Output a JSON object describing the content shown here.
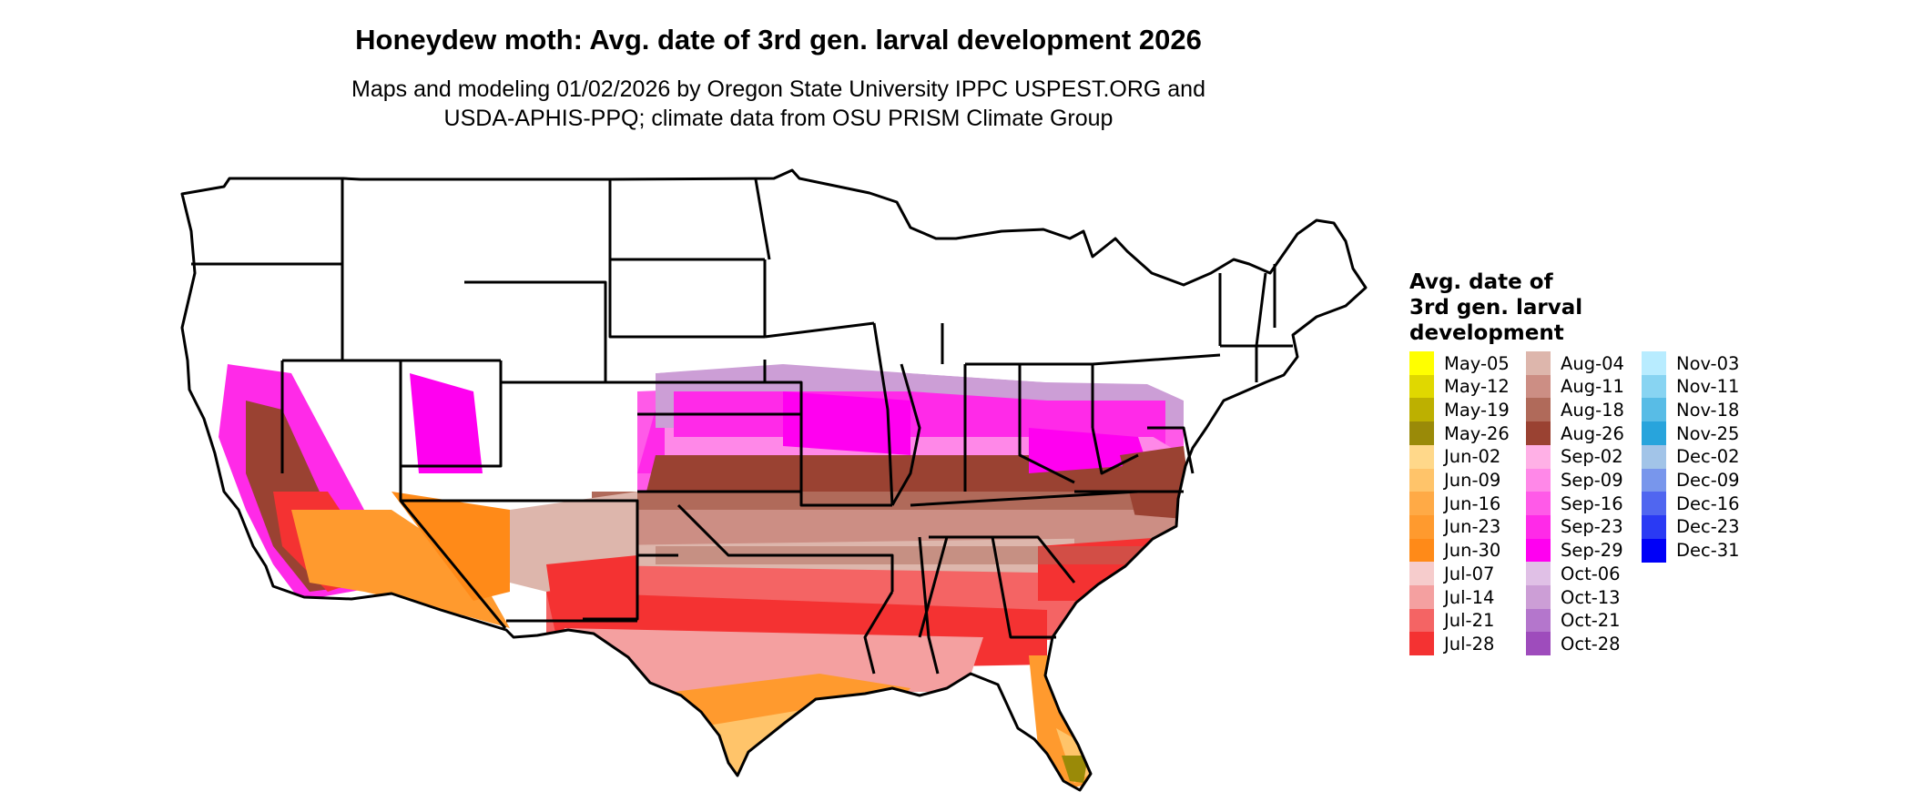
{
  "title": "Honeydew moth: Avg. date of 3rd gen. larval development 2026",
  "subtitle_line1": "Maps and modeling 01/02/2026 by Oregon State University IPPC USPEST.ORG and",
  "subtitle_line2": "USDA-APHIS-PPQ; climate data from OSU PRISM Climate Group",
  "legend": {
    "title_lines": [
      "Avg. date of",
      "3rd gen. larval",
      "development"
    ],
    "items": [
      {
        "label": "May-05",
        "color": "#ffff00"
      },
      {
        "label": "May-12",
        "color": "#e0d800"
      },
      {
        "label": "May-19",
        "color": "#bdb000"
      },
      {
        "label": "May-26",
        "color": "#9a8a08"
      },
      {
        "label": "Jun-02",
        "color": "#ffd88a"
      },
      {
        "label": "Jun-09",
        "color": "#ffc46a"
      },
      {
        "label": "Jun-16",
        "color": "#ffaa46"
      },
      {
        "label": "Jun-23",
        "color": "#ff9a2e"
      },
      {
        "label": "Jun-30",
        "color": "#ff8a18"
      },
      {
        "label": "Jul-07",
        "color": "#f6cccc"
      },
      {
        "label": "Jul-14",
        "color": "#f4a0a0"
      },
      {
        "label": "Jul-21",
        "color": "#f46464"
      },
      {
        "label": "Jul-28",
        "color": "#f43232"
      },
      {
        "label": "Aug-04",
        "color": "#ddb6ac"
      },
      {
        "label": "Aug-11",
        "color": "#cc8e84"
      },
      {
        "label": "Aug-18",
        "color": "#b06a5a"
      },
      {
        "label": "Aug-26",
        "color": "#9a4232"
      },
      {
        "label": "Sep-02",
        "color": "#ffb0e6"
      },
      {
        "label": "Sep-09",
        "color": "#ff88e8"
      },
      {
        "label": "Sep-16",
        "color": "#ff5ae8"
      },
      {
        "label": "Sep-23",
        "color": "#ff2ae8"
      },
      {
        "label": "Sep-29",
        "color": "#ff00f0"
      },
      {
        "label": "Oct-06",
        "color": "#e0c0e6"
      },
      {
        "label": "Oct-13",
        "color": "#cc9ed6"
      },
      {
        "label": "Oct-21",
        "color": "#b476cc"
      },
      {
        "label": "Oct-28",
        "color": "#9e4cbc"
      },
      {
        "label": "Nov-03",
        "color": "#b8ecff"
      },
      {
        "label": "Nov-11",
        "color": "#88d4f2"
      },
      {
        "label": "Nov-18",
        "color": "#58bce6"
      },
      {
        "label": "Nov-25",
        "color": "#28a4dc"
      },
      {
        "label": "Dec-02",
        "color": "#a2c4e8"
      },
      {
        "label": "Dec-09",
        "color": "#7896ec"
      },
      {
        "label": "Dec-16",
        "color": "#5066f0"
      },
      {
        "label": "Dec-23",
        "color": "#2a3af4"
      },
      {
        "label": "Dec-31",
        "color": "#0000f8"
      }
    ]
  }
}
